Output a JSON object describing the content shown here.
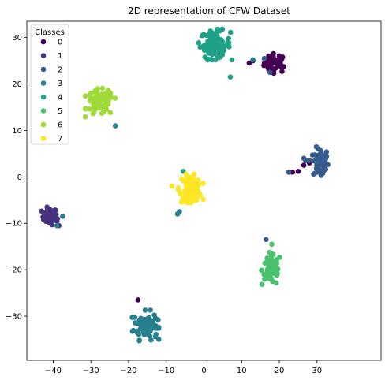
{
  "chart_data": {
    "type": "scatter",
    "title": "2D representation of CFW Dataset",
    "xlabel": "",
    "ylabel": "",
    "xlim": [
      -47,
      47
    ],
    "ylim": [
      -39.5,
      33.5
    ],
    "xticks": [
      -40,
      -30,
      -20,
      -10,
      0,
      10,
      20,
      30
    ],
    "yticks": [
      -30,
      -20,
      -10,
      0,
      10,
      20,
      30
    ],
    "grid": false,
    "legend": {
      "title": "Classes",
      "placement": "top-left"
    },
    "series": [
      {
        "name": "0",
        "color": "#440154",
        "center": [
          19,
          24.5
        ],
        "spread": [
          1.5,
          1.0
        ],
        "count": 40,
        "extra": [
          [
            12,
            24.5
          ],
          [
            13,
            25
          ],
          [
            16,
            24
          ],
          [
            17,
            23.5
          ],
          [
            23.5,
            1
          ],
          [
            25,
            1.2
          ],
          [
            26.5,
            2.5
          ],
          [
            28,
            3
          ],
          [
            -17.5,
            -26.5
          ]
        ]
      },
      {
        "name": "1",
        "color": "#46327e",
        "center": [
          -41,
          -8.5
        ],
        "spread": [
          1.0,
          0.9
        ],
        "count": 40,
        "extra": [
          [
            -42.5,
            -9
          ],
          [
            -39,
            -9.5
          ],
          [
            -38.5,
            -10.5
          ]
        ]
      },
      {
        "name": "2",
        "color": "#365c8d",
        "center": [
          31,
          3
        ],
        "spread": [
          1.0,
          1.6
        ],
        "count": 70,
        "extra": [
          [
            22.5,
            1
          ],
          [
            26.5,
            4
          ],
          [
            27,
            3.5
          ],
          [
            28,
            3.5
          ],
          [
            16,
            25.5
          ],
          [
            17.5,
            22.5
          ],
          [
            16.5,
            -13.5
          ]
        ]
      },
      {
        "name": "3",
        "color": "#277f8e",
        "center": [
          -15.5,
          -32
        ],
        "spread": [
          1.6,
          1.5
        ],
        "count": 80,
        "extra": [
          [
            -23.5,
            11
          ],
          [
            -37.5,
            -8.5
          ],
          [
            -39,
            -10.5
          ],
          [
            -7,
            -8
          ],
          [
            -6.5,
            -7.5
          ],
          [
            13,
            25.2
          ]
        ]
      },
      {
        "name": "4",
        "color": "#1fa187",
        "center": [
          3,
          28.5
        ],
        "spread": [
          2.0,
          1.5
        ],
        "count": 90,
        "extra": [
          [
            7,
            21.5
          ],
          [
            -5.5,
            1.2
          ]
        ]
      },
      {
        "name": "5",
        "color": "#4ac16d",
        "center": [
          18,
          -20
        ],
        "spread": [
          1.3,
          1.7
        ],
        "count": 70,
        "extra": [
          [
            18,
            -14.5
          ]
        ]
      },
      {
        "name": "6",
        "color": "#a0da39",
        "center": [
          -27.5,
          16
        ],
        "spread": [
          1.8,
          1.4
        ],
        "count": 80,
        "extra": []
      },
      {
        "name": "7",
        "color": "#fde725",
        "center": [
          -3.5,
          -2.5
        ],
        "spread": [
          1.5,
          1.4
        ],
        "count": 90,
        "extra": [
          [
            -8.5,
            -2
          ]
        ]
      }
    ]
  }
}
